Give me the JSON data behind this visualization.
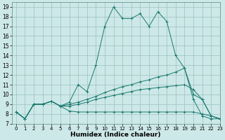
{
  "xlabel": "Humidex (Indice chaleur)",
  "bg_color": "#cde8e8",
  "line_color": "#1a7a6e",
  "xlim": [
    -0.5,
    23
  ],
  "ylim": [
    7,
    19.5
  ],
  "xticks": [
    0,
    1,
    2,
    3,
    4,
    5,
    6,
    7,
    8,
    9,
    10,
    11,
    12,
    13,
    14,
    15,
    16,
    17,
    18,
    19,
    20,
    21,
    22,
    23
  ],
  "yticks": [
    7,
    8,
    9,
    10,
    11,
    12,
    13,
    14,
    15,
    16,
    17,
    18,
    19
  ],
  "series": [
    {
      "x": [
        0,
        1,
        2,
        3,
        4,
        5,
        6,
        7,
        8,
        9,
        10,
        11,
        12,
        13,
        14,
        15,
        16,
        17,
        18,
        19,
        20,
        21,
        22,
        23
      ],
      "y": [
        8.2,
        7.5,
        9.0,
        9.0,
        9.3,
        8.8,
        9.2,
        11.0,
        10.3,
        13.0,
        17.0,
        19.0,
        17.8,
        17.8,
        18.3,
        17.0,
        18.5,
        17.5,
        14.0,
        12.7,
        9.5,
        7.8,
        7.5,
        7.5
      ]
    },
    {
      "x": [
        0,
        1,
        2,
        3,
        4,
        5,
        6,
        7,
        8,
        9,
        10,
        11,
        12,
        13,
        14,
        15,
        16,
        17,
        18,
        19,
        20,
        21,
        22,
        23
      ],
      "y": [
        8.2,
        7.5,
        9.0,
        9.0,
        9.3,
        8.8,
        9.0,
        9.2,
        9.5,
        9.8,
        10.2,
        10.5,
        10.8,
        11.0,
        11.3,
        11.5,
        11.8,
        12.0,
        12.3,
        12.7,
        10.0,
        9.5,
        7.8,
        7.5
      ]
    },
    {
      "x": [
        0,
        1,
        2,
        3,
        4,
        5,
        6,
        7,
        8,
        9,
        10,
        11,
        12,
        13,
        14,
        15,
        16,
        17,
        18,
        19,
        20,
        21,
        22,
        23
      ],
      "y": [
        8.2,
        7.5,
        9.0,
        9.0,
        9.3,
        8.8,
        8.8,
        9.0,
        9.2,
        9.5,
        9.7,
        9.9,
        10.1,
        10.3,
        10.5,
        10.6,
        10.7,
        10.8,
        10.9,
        11.0,
        10.5,
        9.5,
        7.8,
        7.5
      ]
    },
    {
      "x": [
        0,
        1,
        2,
        3,
        4,
        5,
        6,
        7,
        8,
        9,
        10,
        11,
        12,
        13,
        14,
        15,
        16,
        17,
        18,
        19,
        20,
        21,
        22,
        23
      ],
      "y": [
        8.2,
        7.5,
        9.0,
        9.0,
        9.3,
        8.8,
        8.3,
        8.2,
        8.2,
        8.2,
        8.2,
        8.2,
        8.2,
        8.2,
        8.2,
        8.2,
        8.2,
        8.2,
        8.2,
        8.2,
        8.2,
        8.0,
        7.8,
        7.5
      ]
    }
  ]
}
